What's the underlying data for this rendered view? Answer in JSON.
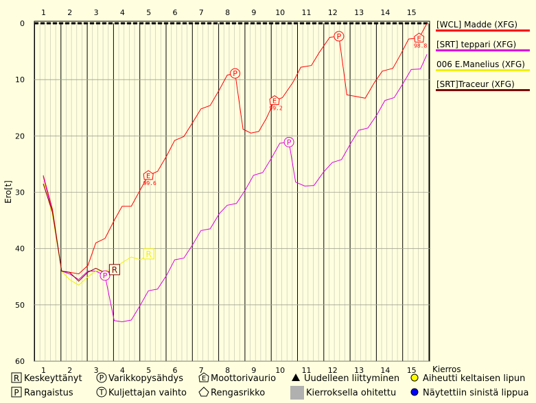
{
  "chart_data": {
    "type": "line",
    "xlabel": "Kierros",
    "ylabel": "Ero[t]",
    "x_categories": [
      1,
      2,
      3,
      4,
      5,
      6,
      7,
      8,
      9,
      10,
      11,
      12,
      13,
      14,
      15
    ],
    "ylim": [
      0,
      60
    ],
    "y_ticks": [
      0,
      10,
      20,
      30,
      40,
      50,
      60
    ],
    "y_inverted": true,
    "grid": true,
    "legend_position": "right",
    "series": [
      {
        "name": "[WCL] Madde (XFG)",
        "color": "#ff0000",
        "points": [
          [
            0.0,
            27
          ],
          [
            0.35,
            33
          ],
          [
            0.7,
            44
          ],
          [
            1.0,
            44.2
          ],
          [
            1.35,
            44.5
          ],
          [
            1.7,
            43
          ],
          [
            2.0,
            39
          ],
          [
            2.35,
            38.2
          ],
          [
            2.7,
            35
          ],
          [
            3.0,
            32.5
          ],
          [
            3.35,
            32.5
          ],
          [
            3.7,
            29.5
          ],
          [
            4.0,
            27
          ],
          [
            4.35,
            26.3
          ],
          [
            4.7,
            23.5
          ],
          [
            5.0,
            20.8
          ],
          [
            5.35,
            20.1
          ],
          [
            5.7,
            17.5
          ],
          [
            6.0,
            15.2
          ],
          [
            6.35,
            14.6
          ],
          [
            6.7,
            11.8
          ],
          [
            7.0,
            9.2
          ],
          [
            7.3,
            8.9
          ],
          [
            7.6,
            18.8
          ],
          [
            7.9,
            19.5
          ],
          [
            8.2,
            19.2
          ],
          [
            8.5,
            16.8
          ],
          [
            8.8,
            13.7
          ],
          [
            9.1,
            13.2
          ],
          [
            9.5,
            10.5
          ],
          [
            9.8,
            7.8
          ],
          [
            10.2,
            7.5
          ],
          [
            10.5,
            5.2
          ],
          [
            10.9,
            2.5
          ],
          [
            11.25,
            2.3
          ],
          [
            11.55,
            12.7
          ],
          [
            11.9,
            13.0
          ],
          [
            12.25,
            13.3
          ],
          [
            12.6,
            10.5
          ],
          [
            12.9,
            8.5
          ],
          [
            13.3,
            8.0
          ],
          [
            13.6,
            5.5
          ],
          [
            13.9,
            2.8
          ],
          [
            14.3,
            2.6
          ],
          [
            14.6,
            0
          ]
        ]
      },
      {
        "name": "[SRT] teppari (XFG)",
        "color": "#dd00dd",
        "points": [
          [
            0.0,
            27.2
          ],
          [
            0.35,
            33.5
          ],
          [
            0.7,
            44
          ],
          [
            1.0,
            44.5
          ],
          [
            1.35,
            45.5
          ],
          [
            1.7,
            44
          ],
          [
            2.0,
            44
          ],
          [
            2.35,
            44.8
          ],
          [
            2.7,
            52.8
          ],
          [
            3.0,
            53
          ],
          [
            3.35,
            52.7
          ],
          [
            3.7,
            50
          ],
          [
            4.0,
            47.5
          ],
          [
            4.35,
            47.2
          ],
          [
            4.7,
            44.7
          ],
          [
            5.0,
            42
          ],
          [
            5.35,
            41.7
          ],
          [
            5.7,
            39.2
          ],
          [
            6.0,
            36.8
          ],
          [
            6.35,
            36.5
          ],
          [
            6.7,
            33.8
          ],
          [
            7.0,
            32.3
          ],
          [
            7.35,
            32
          ],
          [
            7.7,
            29.5
          ],
          [
            8.0,
            27
          ],
          [
            8.35,
            26.5
          ],
          [
            8.7,
            23.8
          ],
          [
            9.0,
            21.3
          ],
          [
            9.35,
            21.1
          ],
          [
            9.6,
            28.2
          ],
          [
            9.95,
            28.9
          ],
          [
            10.3,
            28.8
          ],
          [
            10.65,
            26.5
          ],
          [
            11.0,
            24.7
          ],
          [
            11.35,
            24.2
          ],
          [
            11.7,
            21.3
          ],
          [
            12.0,
            19
          ],
          [
            12.35,
            18.6
          ],
          [
            12.7,
            16.2
          ],
          [
            13.0,
            13.7
          ],
          [
            13.35,
            13.2
          ],
          [
            13.7,
            10.6
          ],
          [
            14.0,
            8.2
          ],
          [
            14.35,
            8.1
          ],
          [
            14.6,
            5.5
          ]
        ]
      },
      {
        "name": "006 E.Manelius (XFG)",
        "color": "#f0f000",
        "points": [
          [
            0.0,
            28
          ],
          [
            0.35,
            34
          ],
          [
            0.7,
            44
          ],
          [
            1.0,
            45.5
          ],
          [
            1.35,
            46.5
          ],
          [
            1.7,
            45
          ],
          [
            2.0,
            44
          ],
          [
            2.35,
            44
          ],
          [
            2.7,
            43.5
          ],
          [
            3.0,
            42.5
          ],
          [
            3.35,
            41.5
          ],
          [
            3.7,
            42
          ],
          [
            4.0,
            41
          ]
        ]
      },
      {
        "name": "[SRT]Traceur (XFG)",
        "color": "#800000",
        "points": [
          [
            0.0,
            28.5
          ],
          [
            0.35,
            33.5
          ],
          [
            0.7,
            44
          ],
          [
            1.0,
            44.2
          ],
          [
            1.35,
            45.8
          ],
          [
            1.7,
            44.2
          ],
          [
            2.0,
            43.5
          ],
          [
            2.35,
            44.3
          ],
          [
            2.7,
            43.8
          ]
        ]
      }
    ],
    "markers": [
      {
        "type": "P",
        "series": 0,
        "x": 7.3,
        "y": 8.9
      },
      {
        "type": "P",
        "series": 0,
        "x": 11.25,
        "y": 2.3
      },
      {
        "type": "E",
        "series": 0,
        "x": 4.0,
        "y": 27,
        "label": "99.6"
      },
      {
        "type": "E",
        "series": 0,
        "x": 8.8,
        "y": 13.7,
        "label": "99.2"
      },
      {
        "type": "E",
        "series": 0,
        "x": 14.3,
        "y": 2.6,
        "label": "98.8"
      },
      {
        "type": "P",
        "series": 1,
        "x": 2.35,
        "y": 44.8
      },
      {
        "type": "P",
        "series": 1,
        "x": 9.35,
        "y": 21.1
      },
      {
        "type": "R",
        "series": 2,
        "x": 4.0,
        "y": 41
      },
      {
        "type": "R",
        "series": 3,
        "x": 2.7,
        "y": 43.8
      }
    ]
  },
  "keys": [
    {
      "glyph": "R",
      "label": "Keskeyttänyt"
    },
    {
      "glyph": "P",
      "label": "Varikkopysähdys"
    },
    {
      "glyph": "E",
      "label": "Moottorivaurio"
    },
    {
      "glyph": "triangle",
      "label": "Uudelleen liittyminen"
    },
    {
      "glyph": "yellow-dot",
      "label": "Aiheutti keltaisen lipun"
    },
    {
      "glyph": "P",
      "label": "Rangaistus"
    },
    {
      "glyph": "T",
      "label": "Kuljettajan vaihto"
    },
    {
      "glyph": "tyre",
      "label": "Rengasrikko"
    },
    {
      "glyph": "grey-box",
      "label": "Kierroksella ohitettu"
    },
    {
      "glyph": "blue-dot",
      "label": "Näytettiin sinistä lippua"
    }
  ]
}
